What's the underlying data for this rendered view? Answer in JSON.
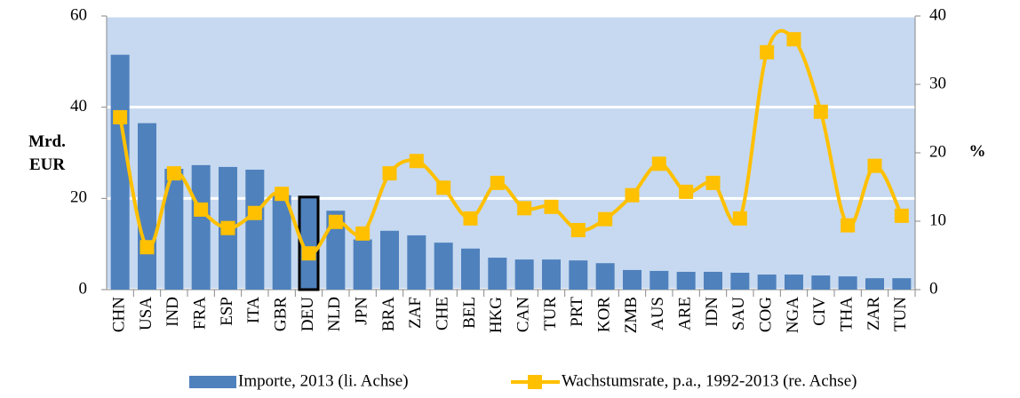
{
  "chart_data": {
    "type": "bar-line",
    "y_label": "Mrd. EUR",
    "y2_label": "%",
    "categories": [
      "CHN",
      "USA",
      "IND",
      "FRA",
      "ESP",
      "ITA",
      "GBR",
      "DEU",
      "NLD",
      "JPN",
      "BRA",
      "ZAF",
      "CHE",
      "BEL",
      "HKG",
      "CAN",
      "TUR",
      "PRT",
      "KOR",
      "ZMB",
      "AUS",
      "ARE",
      "IDN",
      "SAU",
      "COG",
      "NGA",
      "CIV",
      "THA",
      "ZAR",
      "TUN"
    ],
    "series": [
      {
        "name": "Importe, 2013 (li. Achse)",
        "type": "bar",
        "color": "#4f81bd",
        "values": [
          51.5,
          36.5,
          26.5,
          27.3,
          26.9,
          26.3,
          20.7,
          20.3,
          17.3,
          11,
          12.9,
          11.9,
          10.3,
          9.0,
          7.0,
          6.6,
          6.6,
          6.4,
          5.8,
          4.3,
          4.1,
          3.9,
          3.9,
          3.7,
          3.3,
          3.3,
          3.1,
          2.9,
          2.5,
          2.5
        ]
      },
      {
        "name": "Wachstumsrate, p.a., 1992-2013 (re. Achse)",
        "type": "line",
        "axis": "y2",
        "color": "#ffc000",
        "values": [
          25.2,
          6.2,
          17.0,
          11.7,
          9.0,
          11.2,
          14.0,
          5.3,
          9.9,
          8.2,
          17.0,
          18.8,
          14.9,
          10.4,
          15.6,
          11.9,
          12.1,
          8.7,
          10.3,
          13.8,
          18.4,
          14.3,
          15.6,
          10.4,
          34.7,
          36.6,
          26.0,
          9.4,
          18.1,
          10.8
        ]
      }
    ],
    "highlight": "DEU",
    "ylim": [
      0,
      60
    ],
    "yticks": [
      0,
      20,
      40,
      60
    ],
    "y2lim": [
      0,
      40
    ],
    "y2ticks": [
      0,
      10,
      20,
      30,
      40
    ],
    "grid": true,
    "background": "#c6d9f0",
    "legend": "bottom"
  }
}
